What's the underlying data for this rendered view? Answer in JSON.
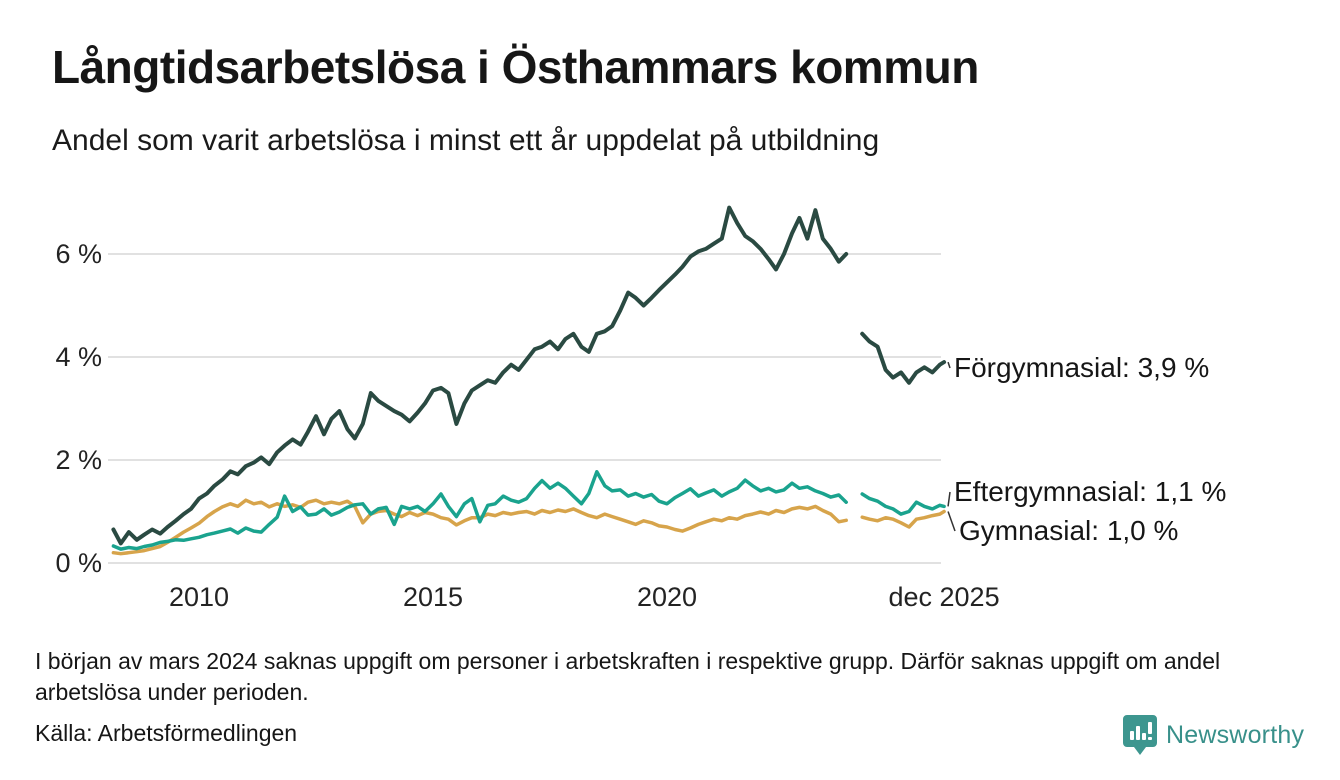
{
  "title": "Långtidsarbetslösa i Östhammars kommun",
  "subtitle": "Andel som varit arbetslösa i minst ett år uppdelat på utbildning",
  "footnote": "I början av mars 2024 saknas uppgift om personer i arbetskraften i respektive grupp. Därför saknas uppgift om andel arbetslösa under perioden.",
  "source": "Källa: Arbetsförmedlingen",
  "branding": {
    "name": "Newsworthy",
    "color": "#38908a",
    "icon": "newsworthy-pin-bar-chart"
  },
  "colors": {
    "background": "#ffffff",
    "gridline": "#e1e1e1",
    "text": "#161616",
    "axis_text": "#232323",
    "series_forgymnasial": "#2a4a42",
    "series_eftergymnasial": "#1aa38e",
    "series_gymnasial": "#d7a44b"
  },
  "chart_data": {
    "type": "line",
    "title": "Långtidsarbetslösa i Östhammars kommun",
    "subtitle": "Andel som varit arbetslösa i minst ett år uppdelat på utbildning",
    "xlabel": "",
    "ylabel": "",
    "unit": "%",
    "ylim": [
      0,
      7.2
    ],
    "grid": "horizontal",
    "legend_position": "right-end-labels",
    "gap_period": "dec 2023 – feb 2024 (data saknas)",
    "y_ticks": [
      {
        "value": 0,
        "label": "0 %"
      },
      {
        "value": 2,
        "label": "2 %"
      },
      {
        "value": 4,
        "label": "4 %"
      },
      {
        "value": 6,
        "label": "6 %"
      }
    ],
    "x_ticks": [
      {
        "value": 2010,
        "label": "2010"
      },
      {
        "value": 2015,
        "label": "2015"
      },
      {
        "value": 2020,
        "label": "2020"
      },
      {
        "value": 2025.92,
        "label": "dec 2025"
      }
    ],
    "x": [
      2008.17,
      2008.33,
      2008.5,
      2008.67,
      2008.83,
      2009.0,
      2009.17,
      2009.33,
      2009.5,
      2009.67,
      2009.83,
      2010.0,
      2010.17,
      2010.33,
      2010.5,
      2010.67,
      2010.83,
      2011.0,
      2011.17,
      2011.33,
      2011.5,
      2011.67,
      2011.83,
      2012.0,
      2012.17,
      2012.33,
      2012.5,
      2012.67,
      2012.83,
      2013.0,
      2013.17,
      2013.33,
      2013.5,
      2013.67,
      2013.83,
      2014.0,
      2014.17,
      2014.33,
      2014.5,
      2014.67,
      2014.83,
      2015.0,
      2015.17,
      2015.33,
      2015.5,
      2015.67,
      2015.83,
      2016.0,
      2016.17,
      2016.33,
      2016.5,
      2016.67,
      2016.83,
      2017.0,
      2017.17,
      2017.33,
      2017.5,
      2017.67,
      2017.83,
      2018.0,
      2018.17,
      2018.33,
      2018.5,
      2018.67,
      2018.83,
      2019.0,
      2019.17,
      2019.33,
      2019.5,
      2019.67,
      2019.83,
      2020.0,
      2020.17,
      2020.33,
      2020.5,
      2020.67,
      2020.83,
      2021.0,
      2021.17,
      2021.33,
      2021.5,
      2021.67,
      2021.83,
      2022.0,
      2022.17,
      2022.33,
      2022.5,
      2022.67,
      2022.83,
      2023.0,
      2023.17,
      2023.33,
      2023.5,
      2023.67,
      2023.83,
      2024.0,
      2024.17,
      2024.33,
      2024.5,
      2024.67,
      2024.83,
      2025.0,
      2025.17,
      2025.33,
      2025.5,
      2025.67,
      2025.83,
      2025.92
    ],
    "series": [
      {
        "name": "Förgymnasial",
        "end_label": "Förgymnasial: 3,9 %",
        "end_value": "3,9 %",
        "color": "#2a4a42",
        "values": [
          0.65,
          0.38,
          0.6,
          0.45,
          0.55,
          0.65,
          0.57,
          0.7,
          0.82,
          0.95,
          1.05,
          1.25,
          1.35,
          1.5,
          1.62,
          1.78,
          1.72,
          1.88,
          1.95,
          2.05,
          1.92,
          2.15,
          2.28,
          2.4,
          2.3,
          2.55,
          2.85,
          2.5,
          2.8,
          2.95,
          2.6,
          2.42,
          2.7,
          3.3,
          3.15,
          3.05,
          2.95,
          2.88,
          2.75,
          2.92,
          3.1,
          3.35,
          3.4,
          3.3,
          2.7,
          3.1,
          3.35,
          3.45,
          3.55,
          3.5,
          3.7,
          3.85,
          3.75,
          3.95,
          4.15,
          4.2,
          4.3,
          4.15,
          4.35,
          4.45,
          4.2,
          4.1,
          4.45,
          4.5,
          4.6,
          4.9,
          5.25,
          5.15,
          5.0,
          5.15,
          5.3,
          5.45,
          5.6,
          5.75,
          5.95,
          6.05,
          6.1,
          6.2,
          6.3,
          6.9,
          6.6,
          6.35,
          6.25,
          6.1,
          5.9,
          5.7,
          6.0,
          6.4,
          6.7,
          6.3,
          6.85,
          6.3,
          6.1,
          5.85,
          6.0,
          null,
          4.45,
          4.3,
          4.2,
          3.75,
          3.6,
          3.7,
          3.5,
          3.7,
          3.8,
          3.7,
          3.85,
          3.9
        ]
      },
      {
        "name": "Eftergymnasial",
        "end_label": "Eftergymnasial: 1,1 %",
        "end_value": "1,1 %",
        "color": "#1aa38e",
        "values": [
          0.33,
          0.27,
          0.3,
          0.28,
          0.32,
          0.35,
          0.4,
          0.42,
          0.45,
          0.44,
          0.47,
          0.5,
          0.55,
          0.58,
          0.62,
          0.66,
          0.58,
          0.68,
          0.62,
          0.6,
          0.75,
          0.89,
          1.3,
          1.0,
          1.09,
          0.93,
          0.95,
          1.05,
          0.93,
          0.99,
          1.08,
          1.13,
          1.15,
          0.95,
          1.05,
          1.08,
          0.75,
          1.1,
          1.05,
          1.1,
          1.0,
          1.15,
          1.34,
          1.1,
          0.9,
          1.15,
          1.25,
          0.8,
          1.12,
          1.15,
          1.3,
          1.22,
          1.18,
          1.25,
          1.45,
          1.6,
          1.45,
          1.55,
          1.45,
          1.3,
          1.15,
          1.35,
          1.77,
          1.5,
          1.4,
          1.42,
          1.3,
          1.35,
          1.28,
          1.33,
          1.2,
          1.15,
          1.27,
          1.35,
          1.44,
          1.3,
          1.36,
          1.42,
          1.3,
          1.38,
          1.45,
          1.61,
          1.5,
          1.4,
          1.45,
          1.38,
          1.42,
          1.55,
          1.45,
          1.48,
          1.4,
          1.35,
          1.28,
          1.32,
          1.18,
          null,
          1.34,
          1.25,
          1.2,
          1.1,
          1.05,
          0.95,
          1.0,
          1.18,
          1.1,
          1.05,
          1.12,
          1.1
        ]
      },
      {
        "name": "Gymnasial",
        "end_label": "Gymnasial: 1,0 %",
        "end_value": "1,0 %",
        "color": "#d7a44b",
        "values": [
          0.2,
          0.18,
          0.2,
          0.22,
          0.24,
          0.28,
          0.32,
          0.4,
          0.5,
          0.6,
          0.68,
          0.77,
          0.9,
          1.0,
          1.09,
          1.15,
          1.1,
          1.22,
          1.15,
          1.18,
          1.09,
          1.15,
          1.1,
          1.13,
          1.08,
          1.18,
          1.22,
          1.15,
          1.18,
          1.15,
          1.2,
          1.1,
          0.78,
          0.95,
          1.0,
          1.02,
          0.95,
          0.9,
          0.98,
          0.92,
          0.98,
          0.95,
          0.88,
          0.85,
          0.74,
          0.82,
          0.88,
          0.88,
          0.95,
          0.92,
          0.98,
          0.95,
          0.98,
          1.0,
          0.95,
          1.02,
          0.98,
          1.03,
          1.0,
          1.05,
          0.98,
          0.92,
          0.88,
          0.95,
          0.9,
          0.85,
          0.8,
          0.75,
          0.82,
          0.78,
          0.72,
          0.7,
          0.65,
          0.62,
          0.68,
          0.75,
          0.8,
          0.85,
          0.82,
          0.88,
          0.85,
          0.92,
          0.95,
          0.99,
          0.95,
          1.02,
          0.98,
          1.05,
          1.08,
          1.05,
          1.1,
          1.02,
          0.95,
          0.8,
          0.83,
          null,
          0.89,
          0.85,
          0.82,
          0.88,
          0.85,
          0.78,
          0.7,
          0.85,
          0.88,
          0.92,
          0.95,
          1.0
        ]
      }
    ]
  }
}
